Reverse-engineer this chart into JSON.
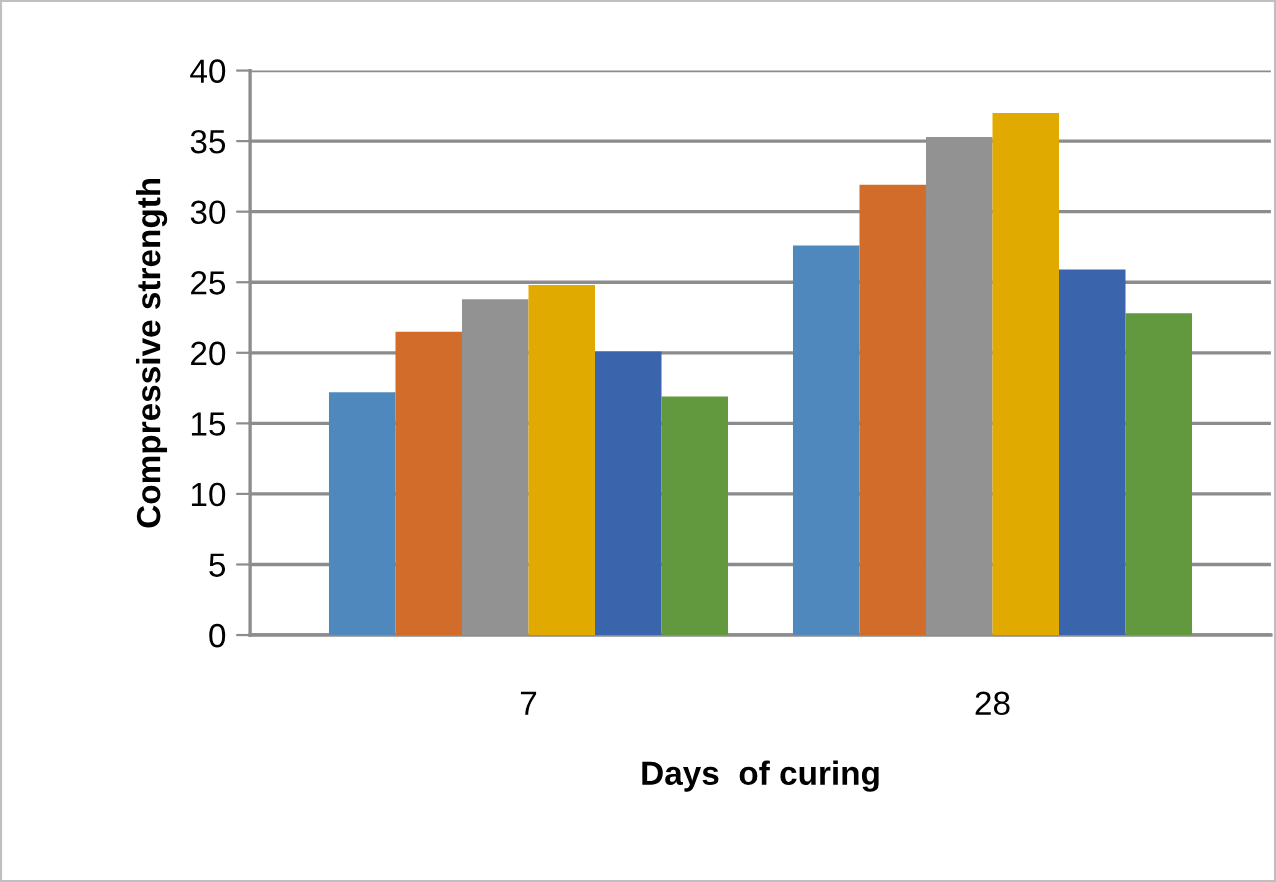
{
  "chart_data": {
    "type": "bar",
    "xlabel": "Days  of curing",
    "ylabel": "Compressive strength",
    "categories": [
      "7",
      "28"
    ],
    "series": [
      {
        "color": "#4f88bd",
        "values": [
          17.2,
          27.6
        ]
      },
      {
        "color": "#d26c2b",
        "values": [
          21.5,
          31.9
        ]
      },
      {
        "color": "#929292",
        "values": [
          23.8,
          35.3
        ]
      },
      {
        "color": "#e1aa00",
        "values": [
          24.8,
          37.0
        ]
      },
      {
        "color": "#3a65ad",
        "values": [
          20.1,
          25.9
        ]
      },
      {
        "color": "#62993f",
        "values": [
          16.9,
          22.8
        ]
      }
    ],
    "ylim": [
      0,
      40
    ],
    "yticks": [
      0,
      5,
      10,
      15,
      20,
      25,
      30,
      35,
      40
    ],
    "grid": "y",
    "legend": false
  }
}
